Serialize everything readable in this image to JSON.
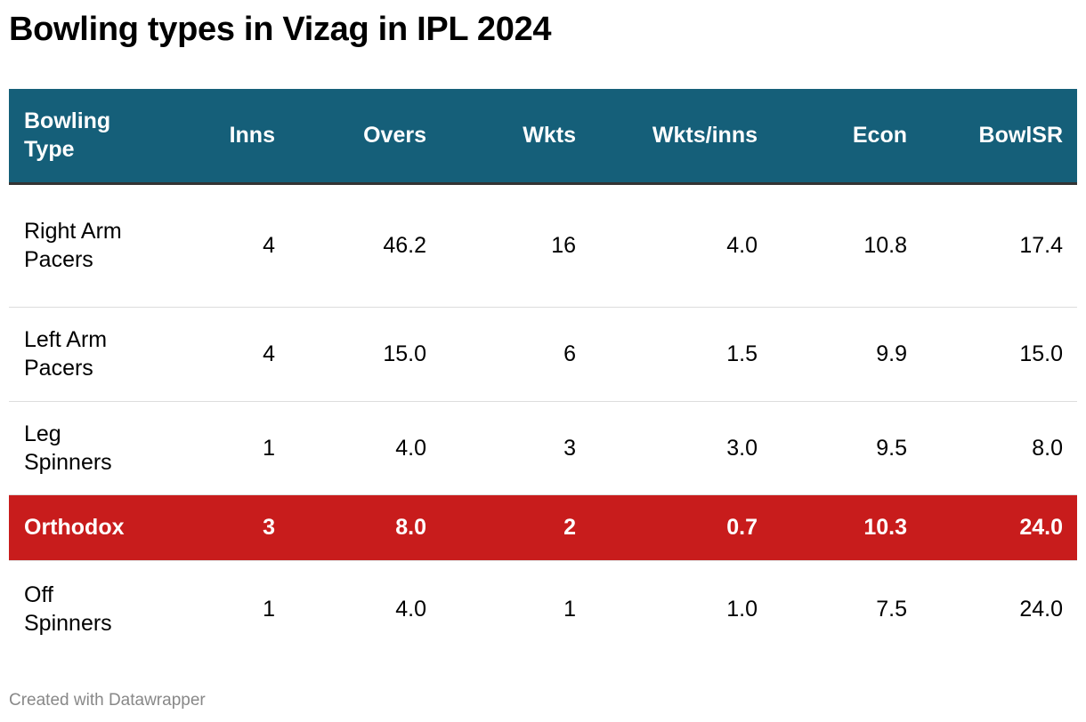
{
  "title": "Bowling types in Vizag in IPL 2024",
  "footer": "Created with Datawrapper",
  "colors": {
    "header": "#155f79",
    "highlight": "#c81c1c"
  },
  "chart_data": {
    "type": "table",
    "title": "Bowling types in Vizag in IPL 2024",
    "columns": [
      "Bowling Type",
      "Inns",
      "Overs",
      "Wkts",
      "Wkts/inns",
      "Econ",
      "BowlSR"
    ],
    "rows": [
      [
        "Right Arm Pacers",
        "4",
        "46.2",
        "16",
        "4.0",
        "10.8",
        "17.4"
      ],
      [
        "Left Arm Pacers",
        "4",
        "15.0",
        "6",
        "1.5",
        "9.9",
        "15.0"
      ],
      [
        "Leg Spinners",
        "1",
        "4.0",
        "3",
        "3.0",
        "9.5",
        "8.0"
      ],
      [
        "Orthodox",
        "3",
        "8.0",
        "2",
        "0.7",
        "10.3",
        "24.0"
      ],
      [
        "Off Spinners",
        "1",
        "4.0",
        "1",
        "1.0",
        "7.5",
        "24.0"
      ]
    ],
    "highlighted_row": 3
  }
}
